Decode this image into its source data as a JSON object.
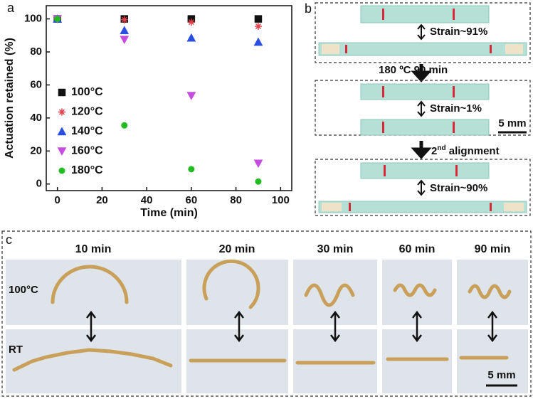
{
  "chart_data": {
    "type": "scatter",
    "panel": "a",
    "xlabel": "Time (min)",
    "ylabel": "Actuation retained (%)",
    "x": [
      0,
      30,
      60,
      90
    ],
    "series": [
      {
        "name": "100°C",
        "color": "#111111",
        "marker": "square",
        "values": [
          100,
          100,
          100,
          100
        ]
      },
      {
        "name": "120°C",
        "color": "#e0404a",
        "marker": "asterisk",
        "values": [
          100,
          99.5,
          98,
          95.5
        ]
      },
      {
        "name": "140°C",
        "color": "#2a4ee0",
        "marker": "triangle-up",
        "values": [
          100,
          93,
          88.5,
          86
        ]
      },
      {
        "name": "160°C",
        "color": "#c44de0",
        "marker": "triangle-down",
        "values": [
          100,
          87.5,
          53.5,
          12.5
        ]
      },
      {
        "name": "180°C",
        "color": "#22bb22",
        "marker": "circle",
        "values": [
          100,
          35.5,
          9,
          1.5
        ]
      }
    ],
    "xlim": [
      -5,
      105
    ],
    "ylim": [
      -4,
      108
    ],
    "xticks": [
      0,
      20,
      40,
      60,
      80,
      100
    ],
    "yticks": [
      0,
      20,
      40,
      60,
      80,
      100
    ],
    "grid": false,
    "legend": "lower left"
  },
  "panel_b": {
    "label": "b",
    "strain_1": "Strain~91%",
    "treatment": "180 ºC 90 min",
    "strain_2": "Strain~1%",
    "scale": "5 mm",
    "alignment": {
      "number": "2",
      "suffix": "nd",
      "rest": " alignment"
    },
    "strain_3": "Strain~90%"
  },
  "panel_c": {
    "label": "c",
    "times": [
      "10 min",
      "20 min",
      "30 min",
      "60 min",
      "90 min"
    ],
    "rows": [
      "100°C",
      "RT"
    ],
    "scale": "5 mm"
  }
}
